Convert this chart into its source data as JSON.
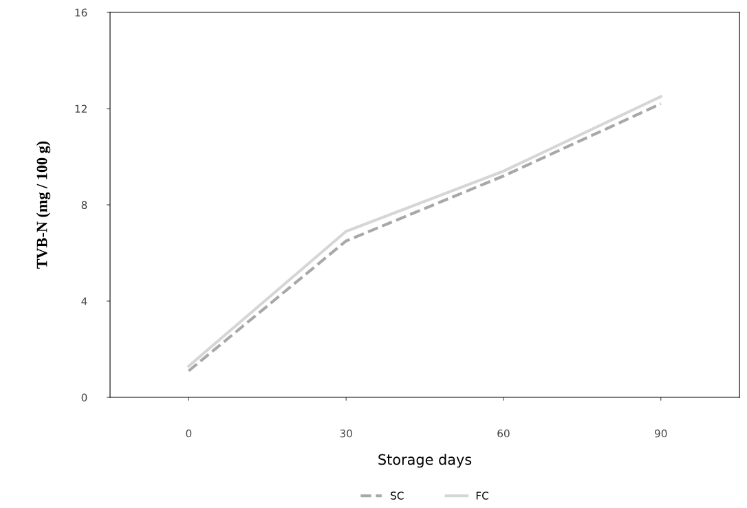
{
  "chart_data": {
    "type": "line",
    "xlabel": "Storage days",
    "ylabel": "TVB-N (mg / 100 g)",
    "x": [
      0,
      30,
      60,
      90
    ],
    "series": [
      {
        "name": "SC",
        "color": "#a8a8a8",
        "values": [
          1.1,
          6.5,
          9.2,
          12.2
        ],
        "line_style": "dashed"
      },
      {
        "name": "FC",
        "color": "#d6d6d6",
        "values": [
          1.3,
          6.9,
          9.4,
          12.5
        ],
        "line_style": "solid"
      }
    ],
    "xlim": [
      -15,
      105
    ],
    "xticks": [
      0,
      30,
      60,
      90
    ],
    "ylim": [
      0,
      16
    ],
    "yticks": [
      0,
      4,
      8,
      12,
      16
    ],
    "grid": false,
    "legend": "bottom",
    "marker": "none"
  }
}
